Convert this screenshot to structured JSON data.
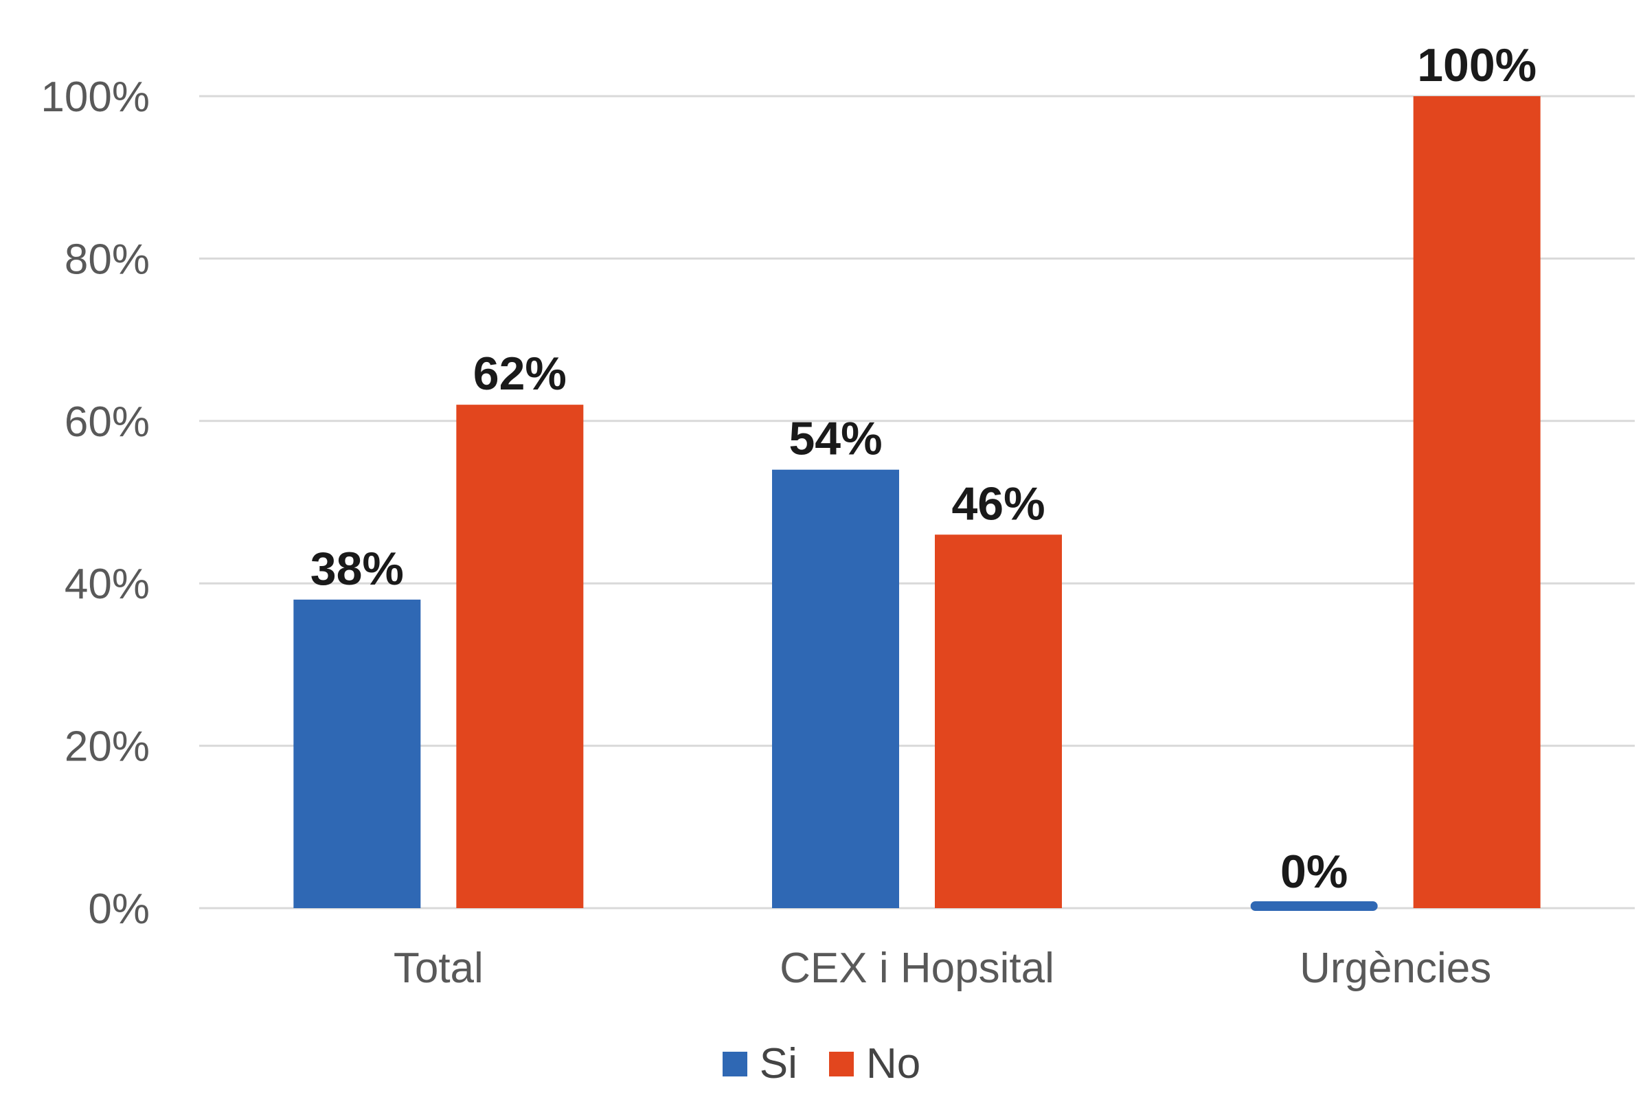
{
  "chart_data": {
    "type": "bar",
    "categories": [
      "Total",
      "CEX i Hopsital",
      "Urgències"
    ],
    "series": [
      {
        "name": "Si",
        "color": "#2F68B4",
        "values": [
          38,
          54,
          0
        ],
        "labels": [
          "38%",
          "54%",
          "0%"
        ]
      },
      {
        "name": "No",
        "color": "#E2461E",
        "values": [
          62,
          46,
          100
        ],
        "labels": [
          "62%",
          "46%",
          "100%"
        ]
      }
    ],
    "y_ticks": [
      0,
      20,
      40,
      60,
      80,
      100
    ],
    "y_tick_labels": [
      "0%",
      "20%",
      "40%",
      "60%",
      "80%",
      "100%"
    ],
    "ylim": [
      0,
      100
    ],
    "grid": true,
    "legend_position": "bottom-center",
    "title": "",
    "xlabel": "",
    "ylabel": ""
  }
}
